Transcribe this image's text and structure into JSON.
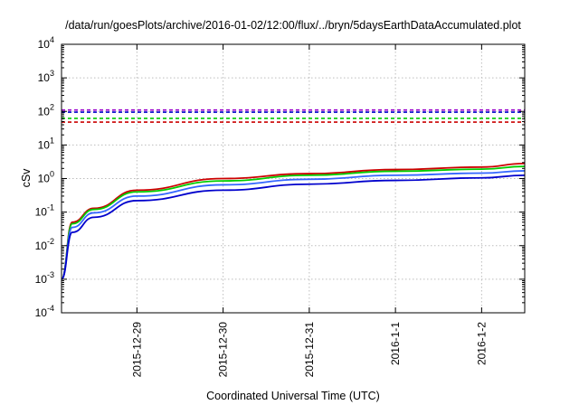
{
  "chart_data": {
    "type": "line",
    "title": "/data/run/goesPlots/archive/2016-01-02/12:00/flux/../bryn/5daysEarthDataAccumulated.plot",
    "xlabel": "Coordinated Universal Time (UTC)",
    "ylabel": "cSv",
    "yscale": "log",
    "ylim": [
      0.0001,
      10000
    ],
    "xlim": [
      "2015-12-28 03:00",
      "2016-01-02 12:00"
    ],
    "x_ticks": [
      {
        "date": "2015-12-29",
        "label": "2015-12-29"
      },
      {
        "date": "2015-12-30",
        "label": "2015-12-30"
      },
      {
        "date": "2015-12-31",
        "label": "2015-12-31"
      },
      {
        "date": "2016-01-01",
        "label": "2016-1-1"
      },
      {
        "date": "2016-01-02",
        "label": "2016-1-2"
      }
    ],
    "y_ticks": [
      {
        "base": "10",
        "exp": "-4",
        "value": 0.0001
      },
      {
        "base": "10",
        "exp": "-3",
        "value": 0.001
      },
      {
        "base": "10",
        "exp": "-2",
        "value": 0.01
      },
      {
        "base": "10",
        "exp": "-1",
        "value": 0.1
      },
      {
        "base": "10",
        "exp": "0",
        "value": 1
      },
      {
        "base": "10",
        "exp": "1",
        "value": 10
      },
      {
        "base": "10",
        "exp": "2",
        "value": 100
      },
      {
        "base": "10",
        "exp": "3",
        "value": 1000
      },
      {
        "base": "10",
        "exp": "4",
        "value": 10000
      }
    ],
    "grid": true,
    "legend": "none",
    "series": [
      {
        "color": "#cc0000",
        "style": "solid",
        "x": [
          "2015-12-28 03:00",
          "2015-12-28 06:00",
          "2015-12-28 12:00",
          "2015-12-29 00:00",
          "2015-12-30 00:00",
          "2015-12-31 00:00",
          "2016-01-01 00:00",
          "2016-01-02 00:00",
          "2016-01-02 12:00"
        ],
        "y": [
          0.001,
          0.05,
          0.13,
          0.45,
          1.0,
          1.4,
          1.85,
          2.2,
          2.8
        ]
      },
      {
        "color": "#00cc00",
        "style": "solid",
        "x": [
          "2015-12-28 03:00",
          "2015-12-28 06:00",
          "2015-12-28 12:00",
          "2015-12-29 00:00",
          "2015-12-30 00:00",
          "2015-12-31 00:00",
          "2016-01-01 00:00",
          "2016-01-02 00:00",
          "2016-01-02 12:00"
        ],
        "y": [
          0.001,
          0.045,
          0.12,
          0.4,
          0.85,
          1.25,
          1.65,
          1.9,
          2.3
        ]
      },
      {
        "color": "#3366ff",
        "style": "solid",
        "x": [
          "2015-12-28 03:00",
          "2015-12-28 06:00",
          "2015-12-28 12:00",
          "2015-12-29 00:00",
          "2015-12-30 00:00",
          "2015-12-31 00:00",
          "2016-01-01 00:00",
          "2016-01-02 00:00",
          "2016-01-02 12:00"
        ],
        "y": [
          0.001,
          0.035,
          0.095,
          0.3,
          0.65,
          0.95,
          1.25,
          1.45,
          1.7
        ]
      },
      {
        "color": "#0000cc",
        "style": "solid",
        "x": [
          "2015-12-28 03:00",
          "2015-12-28 06:00",
          "2015-12-28 12:00",
          "2015-12-29 00:00",
          "2015-12-30 00:00",
          "2015-12-31 00:00",
          "2016-01-01 00:00",
          "2016-01-02 00:00",
          "2016-01-02 12:00"
        ],
        "y": [
          0.001,
          0.025,
          0.07,
          0.22,
          0.45,
          0.68,
          0.88,
          1.05,
          1.25
        ]
      },
      {
        "color": "#9900cc",
        "style": "dashed",
        "x": [
          "2015-12-28 03:00",
          "2016-01-02 12:00"
        ],
        "y": [
          110,
          110
        ]
      },
      {
        "color": "#0000cc",
        "style": "dashed",
        "x": [
          "2015-12-28 03:00",
          "2016-01-02 12:00"
        ],
        "y": [
          95,
          95
        ]
      },
      {
        "color": "#00cc00",
        "style": "dashed",
        "x": [
          "2015-12-28 03:00",
          "2016-01-02 12:00"
        ],
        "y": [
          62,
          62
        ]
      },
      {
        "color": "#cc0000",
        "style": "dashed",
        "x": [
          "2015-12-28 03:00",
          "2016-01-02 12:00"
        ],
        "y": [
          48,
          48
        ]
      }
    ]
  }
}
